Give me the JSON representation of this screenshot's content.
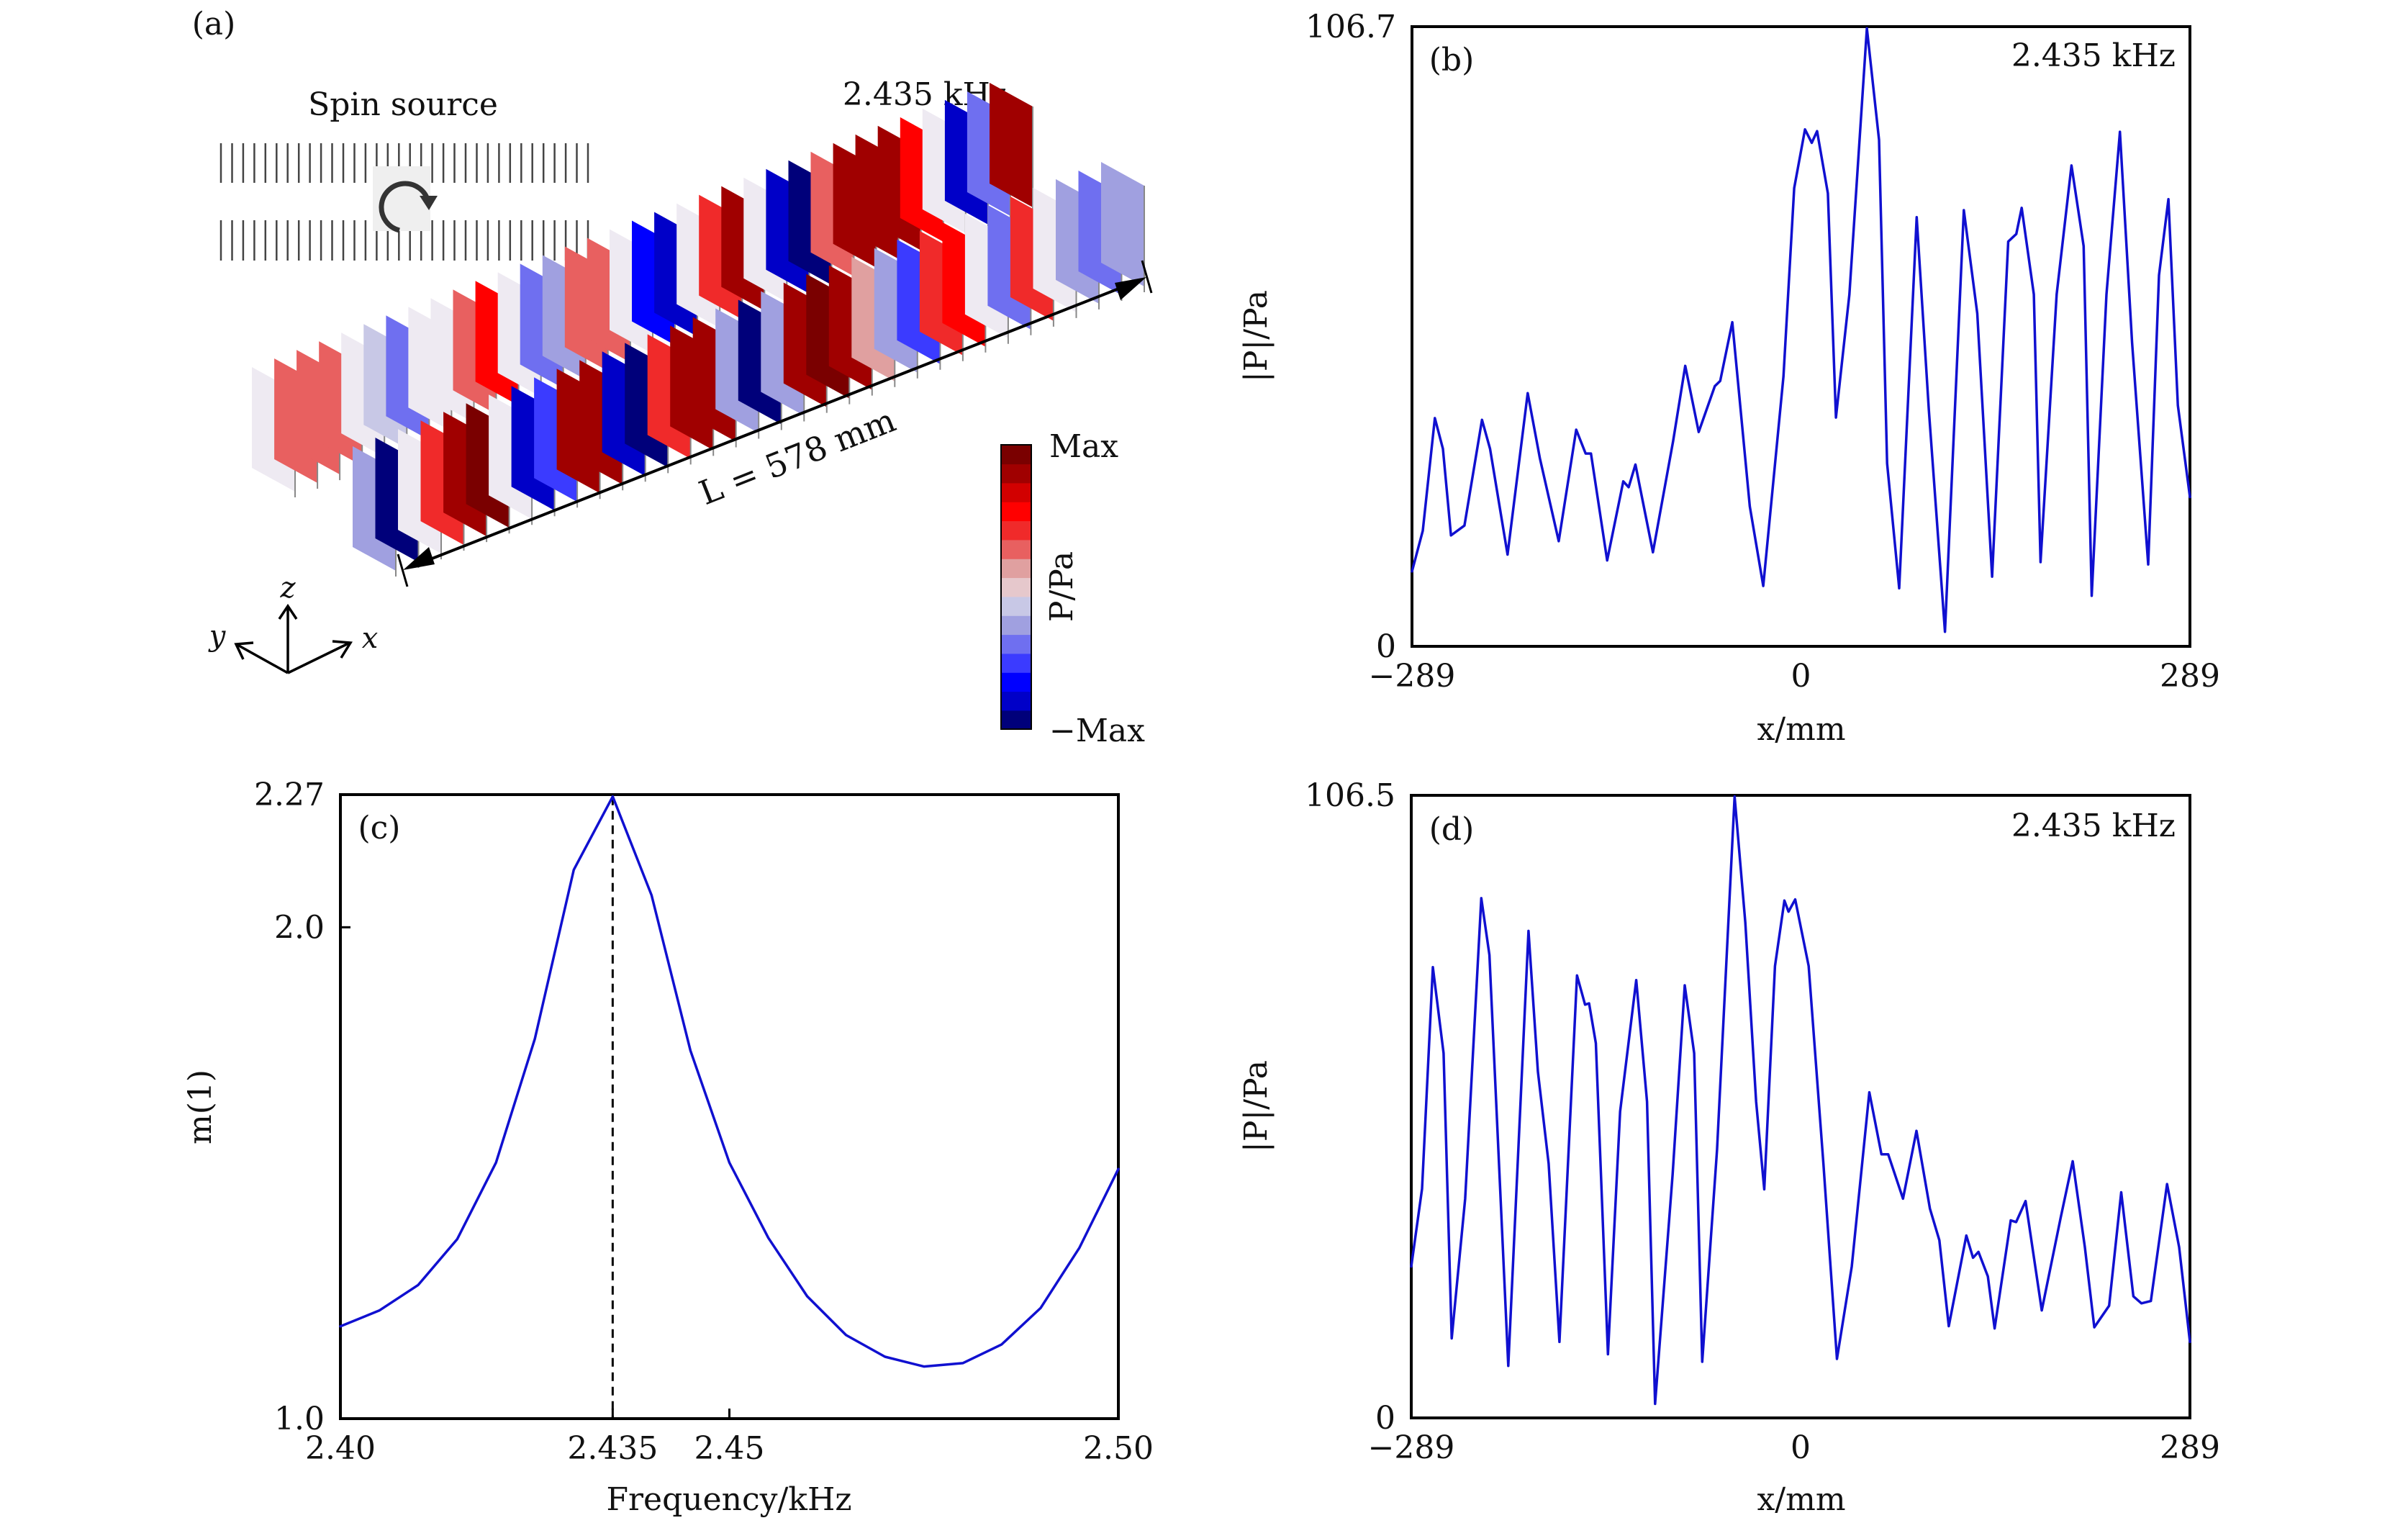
{
  "figure": {
    "panel_a": {
      "label": "(a)",
      "spin_source_label": "Spin source",
      "frequency_label": "2.435 kHz",
      "length_label": "L = 578 mm",
      "colorbar": {
        "title": "P/Pa",
        "max_label": "Max",
        "min_label": "−Max",
        "colors": [
          "#00007a",
          "#0000c8",
          "#0000ff",
          "#3b3bff",
          "#6f6ff0",
          "#a0a0e0",
          "#c8c8e6",
          "#e6c8cc",
          "#e0a0a0",
          "#e86060",
          "#f02a2a",
          "#ff0000",
          "#d20000",
          "#a00000",
          "#7a0000"
        ]
      },
      "axes_triad": {
        "z": "z",
        "y": "y",
        "x": "x"
      },
      "rows": [
        {
          "name": "upper-row",
          "pressure": [
            0.05,
            0.25,
            0.35,
            0.3,
            0.05,
            -0.15,
            -0.45,
            0.0,
            0.05,
            0.35,
            0.55,
            0.1,
            -0.45,
            -0.35,
            0.35,
            0.3,
            0.05,
            -0.75,
            -0.85,
            0.1,
            0.45,
            0.8,
            0.1,
            -0.9,
            -0.95,
            0.3,
            0.85,
            0.9,
            0.85,
            0.5,
            0.1,
            -0.9,
            -0.4,
            0.85
          ]
        },
        {
          "name": "lower-row",
          "pressure": [
            -0.35,
            -0.95,
            0.1,
            0.45,
            0.85,
            0.95,
            0.1,
            -0.9,
            -0.6,
            0.85,
            0.9,
            -0.9,
            -0.95,
            0.45,
            0.85,
            0.8,
            -0.35,
            -0.95,
            -0.3,
            0.85,
            0.95,
            0.85,
            0.15,
            -0.3,
            -0.55,
            0.4,
            0.6,
            0.1,
            -0.4,
            0.4,
            0.05,
            -0.3,
            -0.45,
            -0.3
          ]
        }
      ]
    },
    "panel_b": {
      "label": "(b)",
      "frequency_label": "2.435 kHz"
    },
    "panel_c": {
      "label": "(c)"
    },
    "panel_d": {
      "label": "(d)",
      "frequency_label": "2.435 kHz"
    }
  },
  "chart_data": [
    {
      "id": "b",
      "type": "line",
      "title": "",
      "xlabel": "x/mm",
      "ylabel": "|P|/Pa",
      "xlim": [
        -289,
        289
      ],
      "ylim": [
        0,
        106.7
      ],
      "xticks": [
        -289,
        0,
        289
      ],
      "xtick_labels": [
        "−289",
        "0",
        "289"
      ],
      "yticks": [
        0,
        106.7
      ],
      "ytick_labels": [
        "0",
        "106.7"
      ],
      "grid": false,
      "annotation": "2.435 kHz",
      "series": [
        {
          "name": "|P|",
          "color": "#1010d0",
          "x": [
            -289,
            -281,
            -272,
            -266,
            -260,
            -250,
            -237,
            -231,
            -218,
            -203,
            -194,
            -180,
            -167,
            -160,
            -156,
            -144,
            -132,
            -128,
            -123,
            -110,
            -95,
            -86,
            -76,
            -64,
            -60,
            -51,
            -38,
            -28,
            -13,
            -5,
            3,
            8,
            12,
            20,
            26,
            36,
            49,
            58,
            64,
            73,
            86,
            95,
            107,
            121,
            131,
            142,
            154,
            160,
            164,
            173,
            178,
            190,
            201,
            210,
            216,
            227,
            237,
            246,
            258,
            266,
            273,
            280,
            289
          ],
          "y": [
            12.9,
            19.9,
            39.3,
            34.0,
            19.1,
            20.8,
            39.0,
            34.0,
            15.8,
            43.6,
            32.4,
            18.1,
            37.3,
            33.2,
            33.2,
            14.8,
            28.4,
            27.4,
            31.3,
            16.2,
            35.3,
            48.3,
            36.9,
            44.8,
            45.7,
            55.8,
            24.1,
            10.4,
            46.5,
            78.9,
            89.0,
            86.7,
            88.7,
            78.0,
            39.4,
            60.6,
            106.4,
            87.2,
            31.5,
            10.0,
            73.9,
            40.7,
            2.5,
            75.1,
            57.3,
            12.0,
            69.7,
            71.0,
            75.5,
            60.6,
            14.5,
            60.6,
            82.8,
            68.9,
            8.7,
            60.6,
            88.6,
            52.3,
            14.1,
            63.9,
            77.0,
            41.5,
            25.7
          ]
        }
      ]
    },
    {
      "id": "c",
      "type": "line",
      "title": "",
      "xlabel": "Frequency/kHz",
      "ylabel": "m(1)",
      "xlim": [
        2.4,
        2.5
      ],
      "ylim": [
        1.0,
        2.27
      ],
      "xticks": [
        2.4,
        2.435,
        2.45,
        2.5
      ],
      "xtick_labels": [
        "2.40",
        "2.435",
        "2.45",
        "2.50"
      ],
      "yticks": [
        1.0,
        2.0,
        2.27
      ],
      "ytick_labels": [
        "1.0",
        "2.0",
        "2.27"
      ],
      "grid": false,
      "annotation_vline": 2.435,
      "series": [
        {
          "name": "m(1)",
          "color": "#1010d0",
          "x": [
            2.4,
            2.405,
            2.41,
            2.415,
            2.42,
            2.425,
            2.43,
            2.435,
            2.44,
            2.445,
            2.45,
            2.455,
            2.46,
            2.465,
            2.47,
            2.475,
            2.48,
            2.485,
            2.49,
            2.495,
            2.5
          ],
          "y": [
            1.188,
            1.22,
            1.272,
            1.365,
            1.521,
            1.773,
            2.117,
            2.266,
            2.065,
            1.749,
            1.521,
            1.368,
            1.249,
            1.17,
            1.126,
            1.106,
            1.113,
            1.151,
            1.225,
            1.348,
            1.508
          ]
        }
      ]
    },
    {
      "id": "d",
      "type": "line",
      "title": "",
      "xlabel": "x/mm",
      "ylabel": "|P|/Pa",
      "xlim": [
        -289,
        289
      ],
      "ylim": [
        0,
        106.5
      ],
      "xticks": [
        -289,
        0,
        289
      ],
      "xtick_labels": [
        "−289",
        "0",
        "289"
      ],
      "yticks": [
        0,
        106.5
      ],
      "ytick_labels": [
        "0",
        "106.5"
      ],
      "grid": false,
      "annotation": "2.435 kHz",
      "series": [
        {
          "name": "|P|",
          "color": "#1010d0",
          "x": [
            -289,
            -281,
            -273,
            -265,
            -259,
            -249,
            -237,
            -231,
            -217,
            -202,
            -195,
            -187,
            -179,
            -166,
            -160,
            -157,
            -152,
            -143,
            -134,
            -122,
            -114,
            -108,
            -95,
            -86,
            -79,
            -73,
            -62,
            -49,
            -41,
            -33,
            -27,
            -19,
            -12,
            -9,
            -4,
            6,
            17,
            27,
            38,
            51,
            60,
            65,
            76,
            86,
            96,
            103,
            110,
            123,
            128,
            132,
            139,
            144,
            156,
            160,
            167,
            179,
            193,
            202,
            211,
            218,
            229,
            238,
            247,
            253,
            260,
            272,
            281,
            289
          ],
          "y": [
            25.9,
            39.2,
            77.1,
            62.4,
            13.6,
            37.5,
            88.9,
            79.2,
            8.9,
            83.3,
            59.2,
            43.5,
            13.0,
            75.7,
            70.7,
            70.9,
            64.1,
            10.9,
            52.4,
            74.9,
            54.1,
            2.4,
            41.7,
            74.0,
            62.4,
            9.6,
            45.9,
            106.3,
            84.7,
            54.1,
            39.1,
            77.3,
            88.5,
            86.6,
            88.7,
            77.3,
            43.3,
            10.1,
            25.9,
            55.7,
            45.1,
            45.1,
            37.5,
            49.1,
            35.8,
            30.4,
            15.7,
            31.2,
            27.4,
            28.4,
            24.2,
            15.3,
            33.8,
            33.5,
            37.1,
            18.4,
            34.2,
            43.9,
            29.2,
            15.5,
            19.2,
            38.6,
            20.8,
            19.6,
            20.0,
            40.0,
            29.2,
            13.0
          ]
        }
      ]
    }
  ]
}
